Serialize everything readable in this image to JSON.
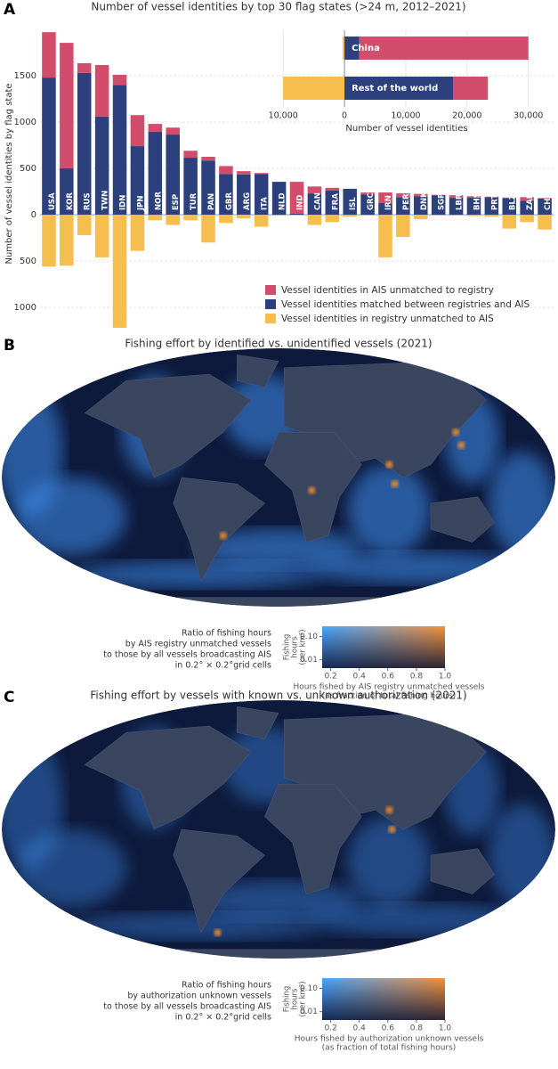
{
  "chart_data": [
    {
      "type": "bar",
      "panel_label": "A",
      "title": "Number of vessel identities by top 30 flag states (>24 m, 2012–2021)",
      "ylabel": "Number of vessel identities by flag state",
      "categories": [
        "USA",
        "KOR",
        "RUS",
        "TWN",
        "IDN",
        "JPN",
        "NOR",
        "ESP",
        "TUR",
        "PAN",
        "GBR",
        "ARG",
        "ITA",
        "NLD",
        "IND",
        "CAN",
        "FRA",
        "ISL",
        "GRC",
        "IRN",
        "PER",
        "DNK",
        "SGP",
        "LBR",
        "BHS",
        "PRT",
        "BLZ",
        "ZAF",
        "CHL"
      ],
      "series": [
        {
          "name": "Vessel identities in AIS unmatched to registry",
          "color": "#d24d6c",
          "values": [
            490,
            1355,
            105,
            555,
            110,
            335,
            85,
            75,
            75,
            40,
            85,
            35,
            10,
            0,
            345,
            75,
            30,
            0,
            20,
            115,
            40,
            25,
            5,
            25,
            15,
            5,
            5,
            40,
            5
          ]
        },
        {
          "name": "Vessel identities matched between registries and AIS",
          "color": "#2b407c",
          "values": [
            1480,
            500,
            1530,
            1060,
            1400,
            740,
            895,
            865,
            615,
            585,
            440,
            435,
            440,
            355,
            10,
            230,
            260,
            280,
            220,
            125,
            190,
            200,
            210,
            185,
            185,
            190,
            180,
            150,
            175
          ]
        },
        {
          "name": "Vessel identities in registry unmatched to AIS",
          "color": "#f6bd4f",
          "values": [
            -560,
            -550,
            -220,
            -460,
            -1220,
            -390,
            -60,
            -110,
            -60,
            -300,
            -90,
            -40,
            -130,
            -10,
            0,
            -110,
            -80,
            -20,
            -10,
            -460,
            -240,
            -50,
            -10,
            -10,
            -15,
            -20,
            -150,
            -80,
            -160
          ]
        }
      ],
      "ylim": [
        -1240,
        2000
      ],
      "yticks": [
        1500,
        1000,
        500,
        0,
        {
          "value": -500,
          "label": "500"
        },
        {
          "value": -1000,
          "label": "1000"
        }
      ],
      "grid": true,
      "legend": "lower right"
    },
    {
      "type": "hbar",
      "xlabel": "Number of vessel identities",
      "categories": [
        "China",
        "Rest of the world"
      ],
      "series": [
        {
          "color": "#d24d6c",
          "values": [
            27600,
            5700
          ]
        },
        {
          "color": "#2b407c",
          "values": [
            2400,
            17700
          ]
        },
        {
          "color": "#f6bd4f",
          "values": [
            -300,
            -10000
          ]
        }
      ],
      "xlim": [
        -10900,
        31200
      ],
      "xticks": [
        {
          "value": -10000,
          "label": "10,000"
        },
        0,
        {
          "value": 10000,
          "label": "10,000"
        },
        {
          "value": 20000,
          "label": "20,000"
        },
        {
          "value": 30000,
          "label": "30,000"
        }
      ],
      "grid": true
    },
    {
      "type": "map",
      "panel_label": "B",
      "title": "Fishing effort by identified vs. unidentified vessels (2021)",
      "legend_text": [
        "Ratio of fishing hours",
        "by AIS registry unmatched vessels",
        "to those by all vessels broadcasting AIS",
        "in 0.2° × 0.2°grid cells"
      ],
      "colorbar": {
        "cmap": [
          "#4aa7ff",
          "#f5923a"
        ],
        "log": true,
        "ylabel": [
          "Fishing",
          "hours",
          "(per km²)"
        ],
        "xlabel": [
          "Hours fished by AIS registry unmatched vessels",
          "(as fraction of total fishing hours)"
        ],
        "xlim": [
          0.14,
          1
        ],
        "xticks": [
          0.2,
          0.4,
          0.6,
          0.8,
          {
            "value": 1,
            "label": "1.0"
          }
        ],
        "ylim": [
          0.0044,
          0.275
        ],
        "yticks": [
          {
            "value": 0.1,
            "label": "0.10"
          },
          0.01
        ]
      }
    },
    {
      "type": "map",
      "panel_label": "C",
      "title": "Fishing effort by vessels with known vs. unknown authorization (2021)",
      "legend_text": [
        "Ratio of fishing hours",
        "by authorization unknown vessels",
        "to those by all vessels broadcasting AIS",
        "in 0.2° × 0.2°grid cells"
      ],
      "colorbar": {
        "cmap": [
          "#4aa7ff",
          "#f5923a"
        ],
        "log": true,
        "ylabel": [
          "Fishing",
          "hours",
          "(per km²)"
        ],
        "xlabel": [
          "Hours fished by authorization unknown vessels",
          "(as fraction of total fishing hours)"
        ],
        "xlim": [
          0.14,
          1
        ],
        "xticks": [
          0.2,
          0.4,
          0.6,
          0.8,
          {
            "value": 1,
            "label": "1.0"
          }
        ],
        "ylim": [
          0.0044,
          0.275
        ],
        "yticks": [
          {
            "value": 0.1,
            "label": "0.10"
          },
          0.01
        ]
      }
    }
  ]
}
